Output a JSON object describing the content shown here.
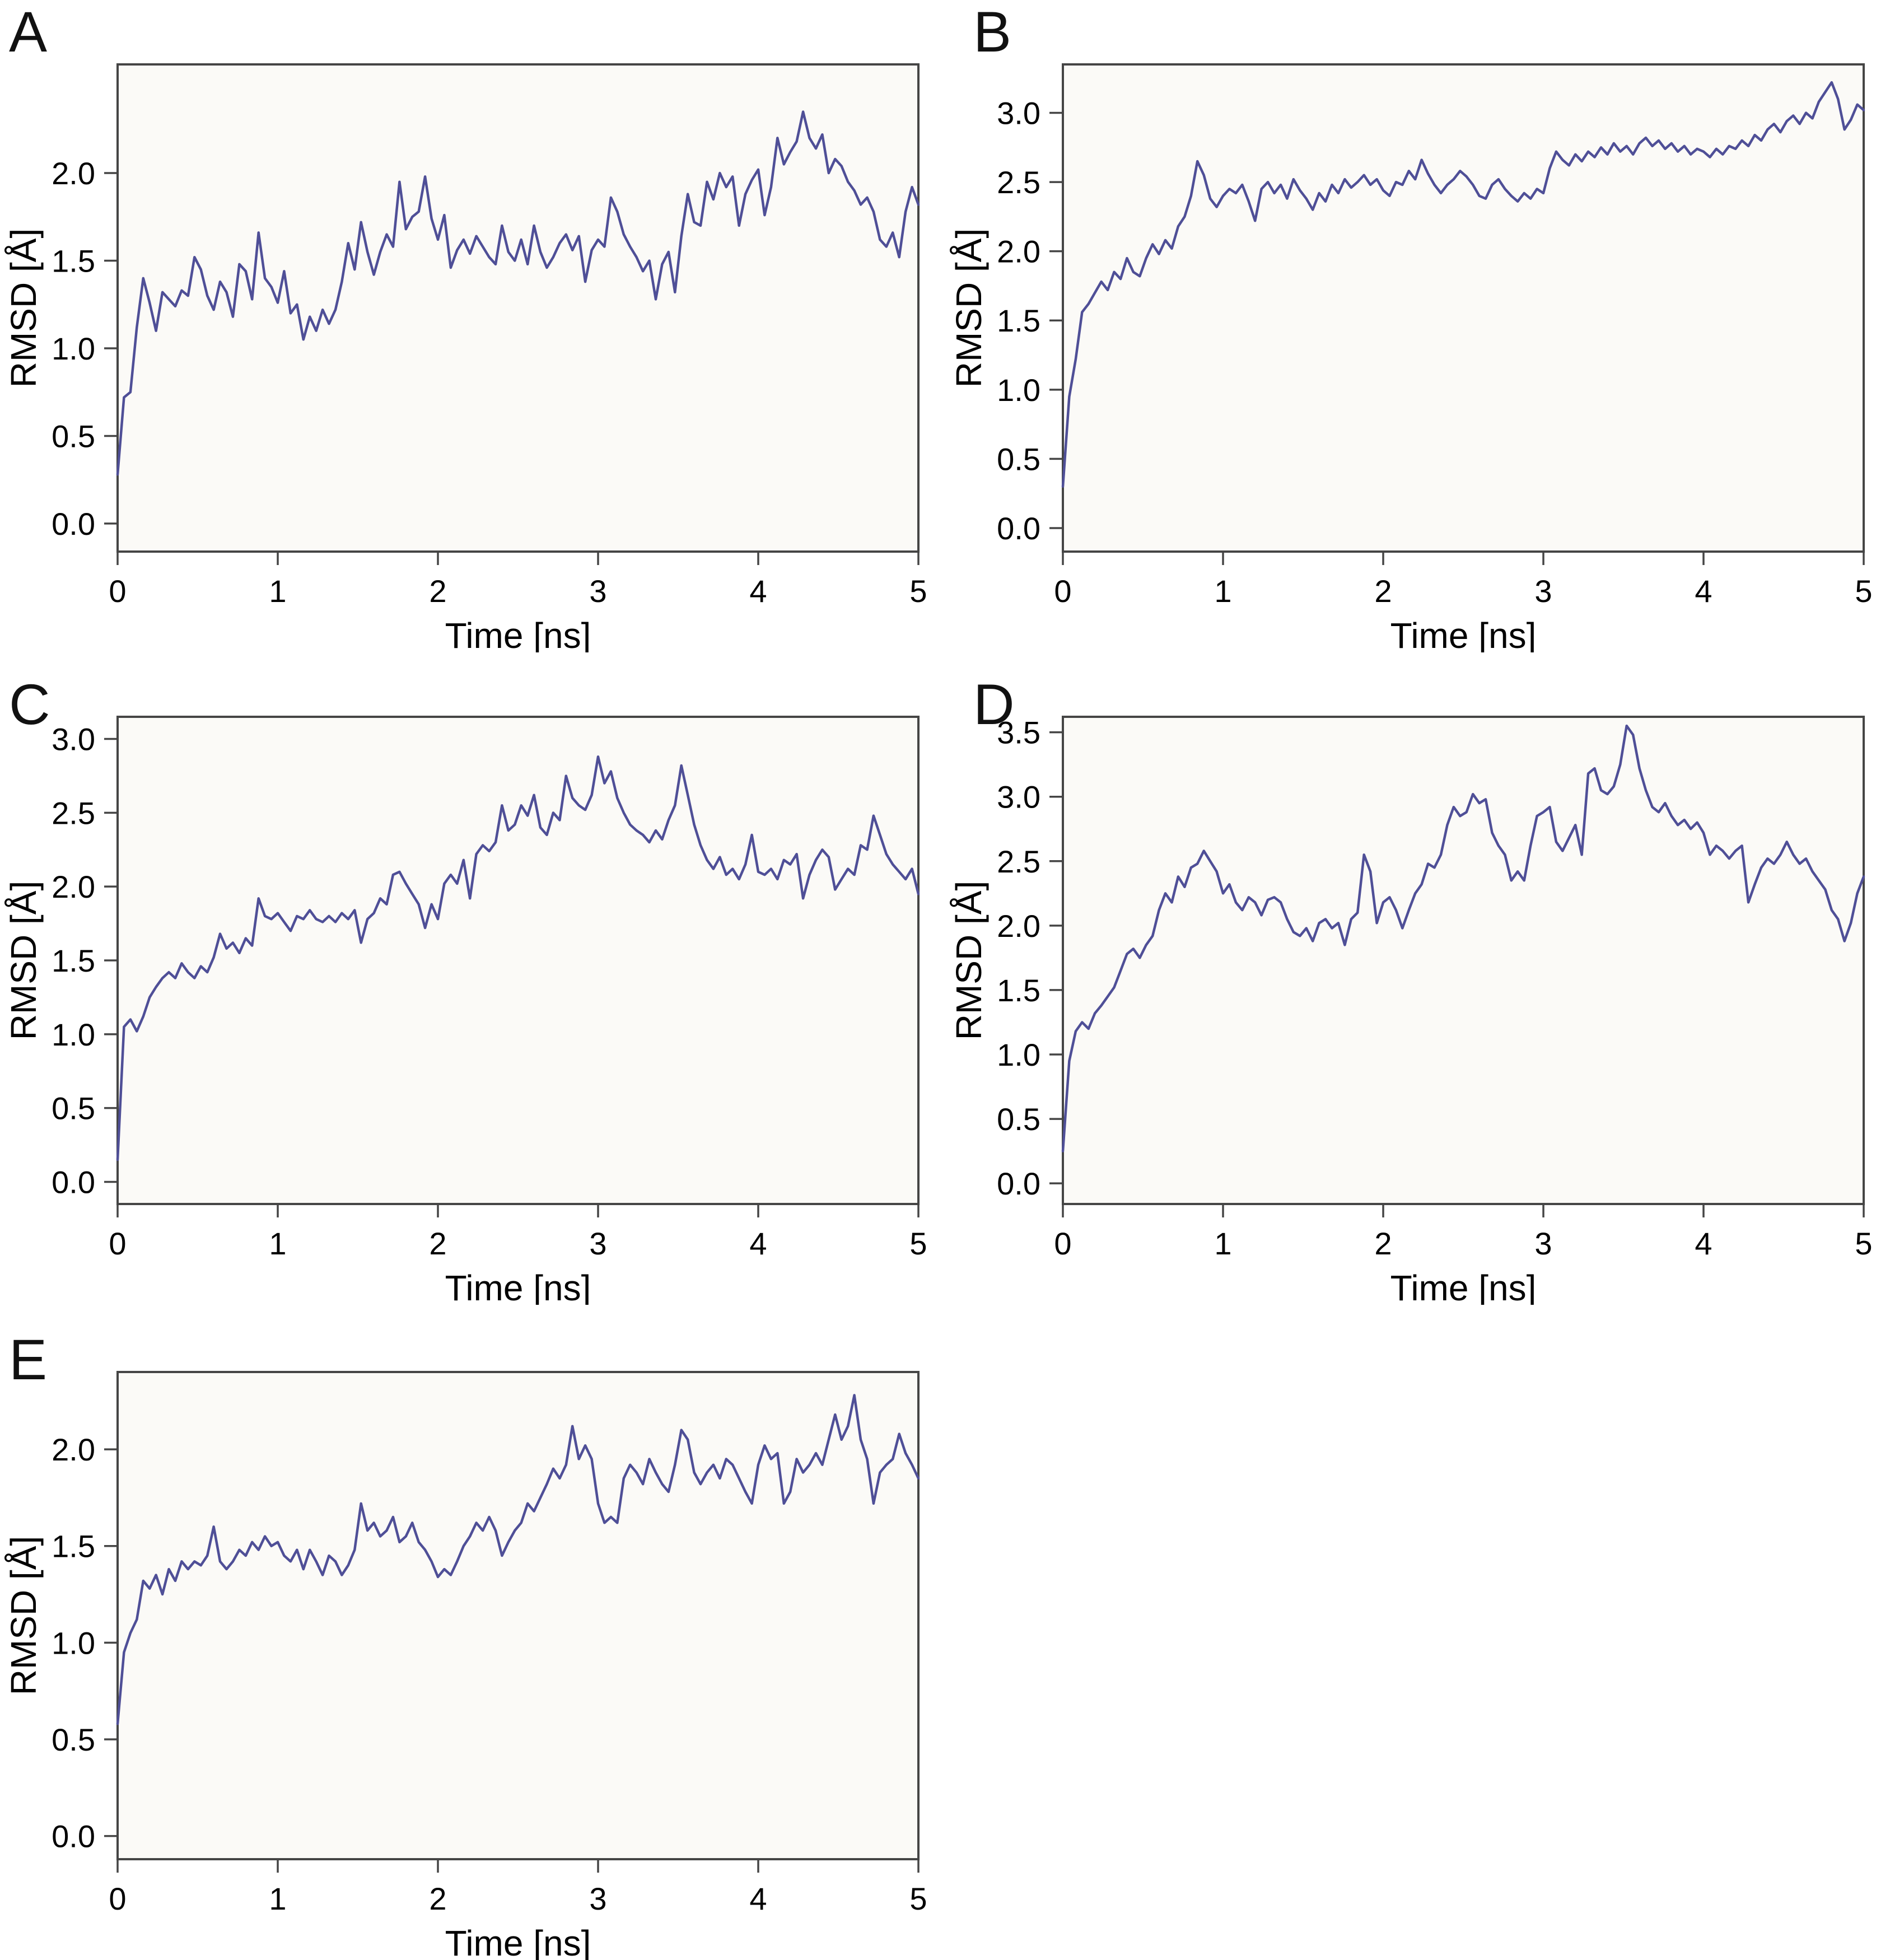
{
  "figure": {
    "background": "#ffffff",
    "panels": [
      {
        "label": "A"
      },
      {
        "label": "B"
      },
      {
        "label": "C"
      },
      {
        "label": "D"
      },
      {
        "label": "E"
      }
    ]
  },
  "chart_data": [
    {
      "type": "line",
      "panel": "A",
      "xlabel": "Time [ns]",
      "ylabel": "RMSD [Å]",
      "xlim": [
        0,
        5
      ],
      "ylim": [
        -0.16,
        2.62
      ],
      "xticks": [
        0,
        1,
        2,
        3,
        4,
        5
      ],
      "xtick_labels": [
        "0",
        "1",
        "2",
        "3",
        "4",
        "5"
      ],
      "yticks": [
        0,
        0.5,
        1,
        1.5,
        2
      ],
      "ytick_labels": [
        "0.0",
        "0.5",
        "1.0",
        "1.5",
        "2.0"
      ],
      "grid": false,
      "legend": "none",
      "line_color": "#4f4f97",
      "axis_color": "#454545",
      "bg_color": "#fbfaf7",
      "x0": 0,
      "dx": 0.04,
      "values": [
        0.28,
        0.72,
        0.75,
        1.12,
        1.4,
        1.26,
        1.1,
        1.32,
        1.28,
        1.24,
        1.33,
        1.3,
        1.52,
        1.45,
        1.3,
        1.22,
        1.38,
        1.32,
        1.18,
        1.48,
        1.44,
        1.28,
        1.66,
        1.4,
        1.35,
        1.26,
        1.44,
        1.2,
        1.25,
        1.05,
        1.18,
        1.1,
        1.22,
        1.14,
        1.22,
        1.38,
        1.6,
        1.45,
        1.72,
        1.55,
        1.42,
        1.55,
        1.65,
        1.58,
        1.95,
        1.68,
        1.75,
        1.78,
        1.98,
        1.74,
        1.62,
        1.76,
        1.46,
        1.56,
        1.62,
        1.54,
        1.64,
        1.58,
        1.52,
        1.48,
        1.7,
        1.55,
        1.5,
        1.62,
        1.48,
        1.7,
        1.55,
        1.46,
        1.52,
        1.6,
        1.65,
        1.56,
        1.64,
        1.38,
        1.56,
        1.62,
        1.58,
        1.86,
        1.78,
        1.65,
        1.58,
        1.52,
        1.44,
        1.5,
        1.28,
        1.48,
        1.55,
        1.32,
        1.64,
        1.88,
        1.72,
        1.7,
        1.95,
        1.85,
        2.0,
        1.92,
        1.98,
        1.7,
        1.88,
        1.96,
        2.02,
        1.76,
        1.92,
        2.2,
        2.05,
        2.12,
        2.18,
        2.35,
        2.2,
        2.14,
        2.22,
        2.0,
        2.08,
        2.04,
        1.95,
        1.9,
        1.82,
        1.86,
        1.78,
        1.62,
        1.58,
        1.66,
        1.52,
        1.78,
        1.92,
        1.82
      ]
    },
    {
      "type": "line",
      "panel": "B",
      "xlabel": "Time [ns]",
      "ylabel": "RMSD [Å]",
      "xlim": [
        0,
        5
      ],
      "ylim": [
        -0.17,
        3.35
      ],
      "xticks": [
        0,
        1,
        2,
        3,
        4,
        5
      ],
      "xtick_labels": [
        "0",
        "1",
        "2",
        "3",
        "4",
        "5"
      ],
      "yticks": [
        0,
        0.5,
        1,
        1.5,
        2,
        2.5,
        3
      ],
      "ytick_labels": [
        "0.0",
        "0.5",
        "1.0",
        "1.5",
        "2.0",
        "2.5",
        "3.0"
      ],
      "grid": false,
      "legend": "none",
      "line_color": "#4f4f97",
      "axis_color": "#454545",
      "bg_color": "#fbfaf7",
      "x0": 0,
      "dx": 0.04,
      "values": [
        0.3,
        0.95,
        1.22,
        1.56,
        1.62,
        1.7,
        1.78,
        1.72,
        1.85,
        1.8,
        1.95,
        1.85,
        1.82,
        1.95,
        2.05,
        1.98,
        2.08,
        2.02,
        2.18,
        2.25,
        2.4,
        2.65,
        2.55,
        2.38,
        2.32,
        2.4,
        2.45,
        2.42,
        2.48,
        2.36,
        2.22,
        2.45,
        2.5,
        2.42,
        2.48,
        2.38,
        2.52,
        2.44,
        2.38,
        2.3,
        2.42,
        2.36,
        2.48,
        2.42,
        2.52,
        2.46,
        2.5,
        2.55,
        2.48,
        2.52,
        2.44,
        2.4,
        2.5,
        2.48,
        2.58,
        2.52,
        2.66,
        2.56,
        2.48,
        2.42,
        2.48,
        2.52,
        2.58,
        2.54,
        2.48,
        2.4,
        2.38,
        2.48,
        2.52,
        2.45,
        2.4,
        2.36,
        2.42,
        2.38,
        2.45,
        2.42,
        2.6,
        2.72,
        2.66,
        2.62,
        2.7,
        2.65,
        2.72,
        2.68,
        2.75,
        2.7,
        2.78,
        2.72,
        2.76,
        2.7,
        2.78,
        2.82,
        2.76,
        2.8,
        2.74,
        2.78,
        2.72,
        2.76,
        2.7,
        2.74,
        2.72,
        2.68,
        2.74,
        2.7,
        2.76,
        2.74,
        2.8,
        2.76,
        2.84,
        2.8,
        2.88,
        2.92,
        2.86,
        2.94,
        2.98,
        2.92,
        3.0,
        2.96,
        3.08,
        3.15,
        3.22,
        3.1,
        2.88,
        2.95,
        3.06,
        3.02
      ]
    },
    {
      "type": "line",
      "panel": "C",
      "xlabel": "Time [ns]",
      "ylabel": "RMSD [Å]",
      "xlim": [
        0,
        5
      ],
      "ylim": [
        -0.15,
        3.15
      ],
      "xticks": [
        0,
        1,
        2,
        3,
        4,
        5
      ],
      "xtick_labels": [
        "0",
        "1",
        "2",
        "3",
        "4",
        "5"
      ],
      "yticks": [
        0,
        0.5,
        1,
        1.5,
        2,
        2.5,
        3
      ],
      "ytick_labels": [
        "0.0",
        "0.5",
        "1.0",
        "1.5",
        "2.0",
        "2.5",
        "3.0"
      ],
      "grid": false,
      "legend": "none",
      "line_color": "#4f4f97",
      "axis_color": "#454545",
      "bg_color": "#fbfaf7",
      "x0": 0,
      "dx": 0.04,
      "values": [
        0.15,
        1.05,
        1.1,
        1.02,
        1.12,
        1.25,
        1.32,
        1.38,
        1.42,
        1.38,
        1.48,
        1.42,
        1.38,
        1.46,
        1.42,
        1.52,
        1.68,
        1.58,
        1.62,
        1.55,
        1.65,
        1.6,
        1.92,
        1.8,
        1.78,
        1.82,
        1.76,
        1.7,
        1.8,
        1.78,
        1.84,
        1.78,
        1.76,
        1.8,
        1.76,
        1.82,
        1.78,
        1.84,
        1.62,
        1.78,
        1.82,
        1.92,
        1.88,
        2.08,
        2.1,
        2.02,
        1.95,
        1.88,
        1.72,
        1.88,
        1.78,
        2.02,
        2.08,
        2.02,
        2.18,
        1.92,
        2.22,
        2.28,
        2.24,
        2.3,
        2.55,
        2.38,
        2.42,
        2.55,
        2.48,
        2.62,
        2.4,
        2.35,
        2.5,
        2.45,
        2.75,
        2.6,
        2.55,
        2.52,
        2.62,
        2.88,
        2.7,
        2.78,
        2.6,
        2.5,
        2.42,
        2.38,
        2.35,
        2.3,
        2.38,
        2.32,
        2.45,
        2.55,
        2.82,
        2.62,
        2.42,
        2.28,
        2.18,
        2.12,
        2.2,
        2.08,
        2.12,
        2.05,
        2.15,
        2.35,
        2.1,
        2.08,
        2.12,
        2.05,
        2.18,
        2.15,
        2.22,
        1.92,
        2.08,
        2.18,
        2.25,
        2.2,
        1.98,
        2.05,
        2.12,
        2.08,
        2.28,
        2.25,
        2.48,
        2.35,
        2.22,
        2.15,
        2.1,
        2.05,
        2.12,
        1.95
      ]
    },
    {
      "type": "line",
      "panel": "D",
      "xlabel": "Time [ns]",
      "ylabel": "RMSD [Å]",
      "xlim": [
        0,
        5
      ],
      "ylim": [
        -0.16,
        3.62
      ],
      "xticks": [
        0,
        1,
        2,
        3,
        4,
        5
      ],
      "xtick_labels": [
        "0",
        "1",
        "2",
        "3",
        "4",
        "5"
      ],
      "yticks": [
        0,
        0.5,
        1,
        1.5,
        2,
        2.5,
        3,
        3.5
      ],
      "ytick_labels": [
        "0.0",
        "0.5",
        "1.0",
        "1.5",
        "2.0",
        "2.5",
        "3.0",
        "3.5"
      ],
      "grid": false,
      "legend": "none",
      "line_color": "#4f4f97",
      "axis_color": "#454545",
      "bg_color": "#fbfaf7",
      "x0": 0,
      "dx": 0.04,
      "values": [
        0.25,
        0.95,
        1.18,
        1.25,
        1.2,
        1.32,
        1.38,
        1.45,
        1.52,
        1.65,
        1.78,
        1.82,
        1.75,
        1.85,
        1.92,
        2.12,
        2.25,
        2.18,
        2.38,
        2.3,
        2.45,
        2.48,
        2.58,
        2.5,
        2.42,
        2.25,
        2.32,
        2.18,
        2.12,
        2.22,
        2.18,
        2.08,
        2.2,
        2.22,
        2.18,
        2.05,
        1.95,
        1.92,
        1.98,
        1.88,
        2.02,
        2.05,
        1.98,
        2.02,
        1.85,
        2.05,
        2.1,
        2.55,
        2.42,
        2.02,
        2.18,
        2.22,
        2.12,
        1.98,
        2.12,
        2.25,
        2.32,
        2.48,
        2.45,
        2.55,
        2.78,
        2.92,
        2.85,
        2.88,
        3.02,
        2.95,
        2.98,
        2.72,
        2.62,
        2.55,
        2.35,
        2.42,
        2.35,
        2.62,
        2.85,
        2.88,
        2.92,
        2.65,
        2.58,
        2.68,
        2.78,
        2.55,
        3.18,
        3.22,
        3.05,
        3.02,
        3.08,
        3.25,
        3.55,
        3.48,
        3.22,
        3.05,
        2.92,
        2.88,
        2.95,
        2.85,
        2.78,
        2.82,
        2.75,
        2.8,
        2.72,
        2.55,
        2.62,
        2.58,
        2.52,
        2.58,
        2.62,
        2.18,
        2.32,
        2.45,
        2.52,
        2.48,
        2.55,
        2.65,
        2.55,
        2.48,
        2.52,
        2.42,
        2.35,
        2.28,
        2.12,
        2.05,
        1.88,
        2.02,
        2.25,
        2.38
      ]
    },
    {
      "type": "line",
      "panel": "E",
      "xlabel": "Time [ns]",
      "ylabel": "RMSD [Å]",
      "xlim": [
        0,
        5
      ],
      "ylim": [
        -0.12,
        2.4
      ],
      "xticks": [
        0,
        1,
        2,
        3,
        4,
        5
      ],
      "xtick_labels": [
        "0",
        "1",
        "2",
        "3",
        "4",
        "5"
      ],
      "yticks": [
        0,
        0.5,
        1,
        1.5,
        2
      ],
      "ytick_labels": [
        "0.0",
        "0.5",
        "1.0",
        "1.5",
        "2.0"
      ],
      "grid": false,
      "legend": "none",
      "line_color": "#4f4f97",
      "axis_color": "#454545",
      "bg_color": "#fbfaf7",
      "x0": 0,
      "dx": 0.04,
      "values": [
        0.58,
        0.95,
        1.05,
        1.12,
        1.32,
        1.28,
        1.35,
        1.25,
        1.38,
        1.32,
        1.42,
        1.38,
        1.42,
        1.4,
        1.45,
        1.6,
        1.42,
        1.38,
        1.42,
        1.48,
        1.45,
        1.52,
        1.48,
        1.55,
        1.5,
        1.52,
        1.45,
        1.42,
        1.48,
        1.38,
        1.48,
        1.42,
        1.35,
        1.45,
        1.42,
        1.35,
        1.4,
        1.48,
        1.72,
        1.58,
        1.62,
        1.55,
        1.58,
        1.65,
        1.52,
        1.55,
        1.62,
        1.52,
        1.48,
        1.42,
        1.34,
        1.38,
        1.35,
        1.42,
        1.5,
        1.55,
        1.62,
        1.58,
        1.65,
        1.58,
        1.45,
        1.52,
        1.58,
        1.62,
        1.72,
        1.68,
        1.75,
        1.82,
        1.9,
        1.85,
        1.92,
        2.12,
        1.95,
        2.02,
        1.95,
        1.72,
        1.62,
        1.65,
        1.62,
        1.85,
        1.92,
        1.88,
        1.82,
        1.95,
        1.88,
        1.82,
        1.78,
        1.92,
        2.1,
        2.05,
        1.88,
        1.82,
        1.88,
        1.92,
        1.85,
        1.95,
        1.92,
        1.85,
        1.78,
        1.72,
        1.92,
        2.02,
        1.95,
        1.98,
        1.72,
        1.78,
        1.95,
        1.88,
        1.92,
        1.98,
        1.92,
        2.05,
        2.18,
        2.05,
        2.12,
        2.28,
        2.05,
        1.95,
        1.72,
        1.88,
        1.92,
        1.95,
        2.08,
        1.98,
        1.92,
        1.85
      ]
    }
  ]
}
